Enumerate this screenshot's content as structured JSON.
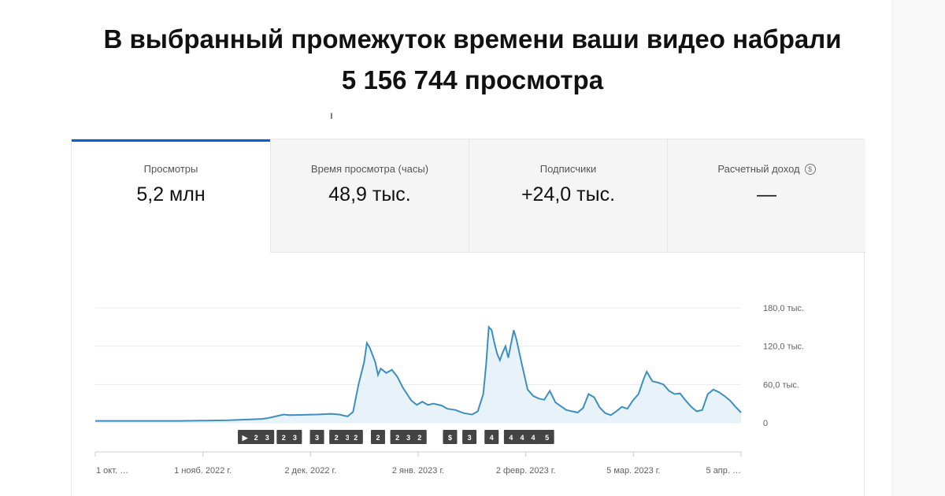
{
  "headline": {
    "line1": "В выбранный промежуток времени ваши видео набрали",
    "line2": "5 156 744 просмотра"
  },
  "tabs": [
    {
      "label": "Просмотры",
      "value": "5,2 млн",
      "active": true
    },
    {
      "label": "Время просмотра (часы)",
      "value": "48,9 тыс.",
      "active": false
    },
    {
      "label": "Подписчики",
      "value": "+24,0 тыс.",
      "active": false
    },
    {
      "label": "Расчетный доход",
      "value": "—",
      "active": false,
      "icon": "dollar-info-icon"
    }
  ],
  "chart_data": {
    "type": "area",
    "ylim": [
      0,
      180000
    ],
    "y_ticks": [
      {
        "value": 180000,
        "label": "180,0 тыс."
      },
      {
        "value": 120000,
        "label": "120,0 тыс."
      },
      {
        "value": 60000,
        "label": "60,0 тыс."
      },
      {
        "value": 0,
        "label": "0"
      }
    ],
    "x_ticks": [
      {
        "day": 0,
        "label": "1 окт. …"
      },
      {
        "day": 31,
        "label": "1 нояб. 2022 г."
      },
      {
        "day": 62,
        "label": "2 дек. 2022 г."
      },
      {
        "day": 93,
        "label": "2 янв. 2023 г."
      },
      {
        "day": 124,
        "label": "2 февр. 2023 г."
      },
      {
        "day": 155,
        "label": "5 мар. 2023 г."
      },
      {
        "day": 186,
        "label": "5 апр. …"
      }
    ],
    "x_max_day": 186,
    "line_color": "#3d8fbf",
    "fill_color": "#e6f1f8",
    "points": [
      [
        0,
        3000
      ],
      [
        10,
        3000
      ],
      [
        20,
        3000
      ],
      [
        30,
        3000
      ],
      [
        40,
        3500
      ],
      [
        48,
        4000
      ],
      [
        55,
        5000
      ],
      [
        60,
        6000
      ],
      [
        62,
        7000
      ],
      [
        65,
        10000
      ],
      [
        68,
        13000
      ],
      [
        70,
        12000
      ],
      [
        75,
        12500
      ],
      [
        80,
        13000
      ],
      [
        85,
        14000
      ],
      [
        88,
        13000
      ],
      [
        91,
        10000
      ],
      [
        93,
        17000
      ],
      [
        95,
        60000
      ],
      [
        97,
        95000
      ],
      [
        98,
        125000
      ],
      [
        99,
        118000
      ],
      [
        101,
        95000
      ],
      [
        102,
        75000
      ],
      [
        103,
        85000
      ],
      [
        105,
        78000
      ],
      [
        107,
        83000
      ],
      [
        109,
        72000
      ],
      [
        111,
        55000
      ],
      [
        114,
        35000
      ],
      [
        116,
        28000
      ],
      [
        118,
        33000
      ],
      [
        120,
        28000
      ],
      [
        122,
        30000
      ],
      [
        125,
        27000
      ],
      [
        127,
        22000
      ],
      [
        130,
        20000
      ],
      [
        133,
        15000
      ],
      [
        136,
        13000
      ],
      [
        138,
        18000
      ],
      [
        140,
        45000
      ],
      [
        141,
        90000
      ],
      [
        142,
        150000
      ],
      [
        143,
        145000
      ],
      [
        144,
        125000
      ],
      [
        145,
        108000
      ],
      [
        146,
        98000
      ],
      [
        147,
        110000
      ],
      [
        148,
        120000
      ],
      [
        149,
        102000
      ],
      [
        151,
        145000
      ],
      [
        152,
        130000
      ],
      [
        154,
        90000
      ],
      [
        156,
        52000
      ],
      [
        158,
        42000
      ],
      [
        160,
        38000
      ],
      [
        162,
        36000
      ],
      [
        164,
        50000
      ],
      [
        166,
        32000
      ],
      [
        168,
        26000
      ],
      [
        170,
        20000
      ],
      [
        172,
        18000
      ],
      [
        174,
        16000
      ],
      [
        176,
        23000
      ],
      [
        178,
        45000
      ],
      [
        180,
        40000
      ],
      [
        182,
        24000
      ],
      [
        184,
        15000
      ],
      [
        186,
        12000
      ],
      [
        188,
        18000
      ],
      [
        190,
        25000
      ],
      [
        192,
        22000
      ],
      [
        194,
        35000
      ],
      [
        196,
        45000
      ],
      [
        198,
        70000
      ],
      [
        199,
        80000
      ],
      [
        201,
        65000
      ],
      [
        203,
        63000
      ],
      [
        205,
        60000
      ],
      [
        207,
        50000
      ],
      [
        209,
        45000
      ],
      [
        211,
        46000
      ],
      [
        213,
        35000
      ],
      [
        215,
        25000
      ],
      [
        217,
        18000
      ],
      [
        219,
        20000
      ],
      [
        221,
        45000
      ],
      [
        223,
        52000
      ],
      [
        225,
        48000
      ],
      [
        227,
        42000
      ],
      [
        229,
        35000
      ],
      [
        231,
        25000
      ],
      [
        233,
        16000
      ]
    ],
    "markers": [
      {
        "day": 54,
        "label": "▶"
      },
      {
        "day": 58,
        "label": "2"
      },
      {
        "day": 62,
        "label": "3"
      },
      {
        "day": 68,
        "label": "2"
      },
      {
        "day": 72,
        "label": "3"
      },
      {
        "day": 80,
        "label": "3"
      },
      {
        "day": 87,
        "label": "2"
      },
      {
        "day": 91,
        "label": "3"
      },
      {
        "day": 94,
        "label": "2"
      },
      {
        "day": 102,
        "label": "2"
      },
      {
        "day": 109,
        "label": "2"
      },
      {
        "day": 113,
        "label": "3"
      },
      {
        "day": 117,
        "label": "2"
      },
      {
        "day": 128,
        "label": "$"
      },
      {
        "day": 135,
        "label": "3"
      },
      {
        "day": 143,
        "label": "4"
      },
      {
        "day": 150,
        "label": "4"
      },
      {
        "day": 154,
        "label": "4"
      },
      {
        "day": 158,
        "label": "4"
      },
      {
        "day": 163,
        "label": "5"
      }
    ]
  }
}
